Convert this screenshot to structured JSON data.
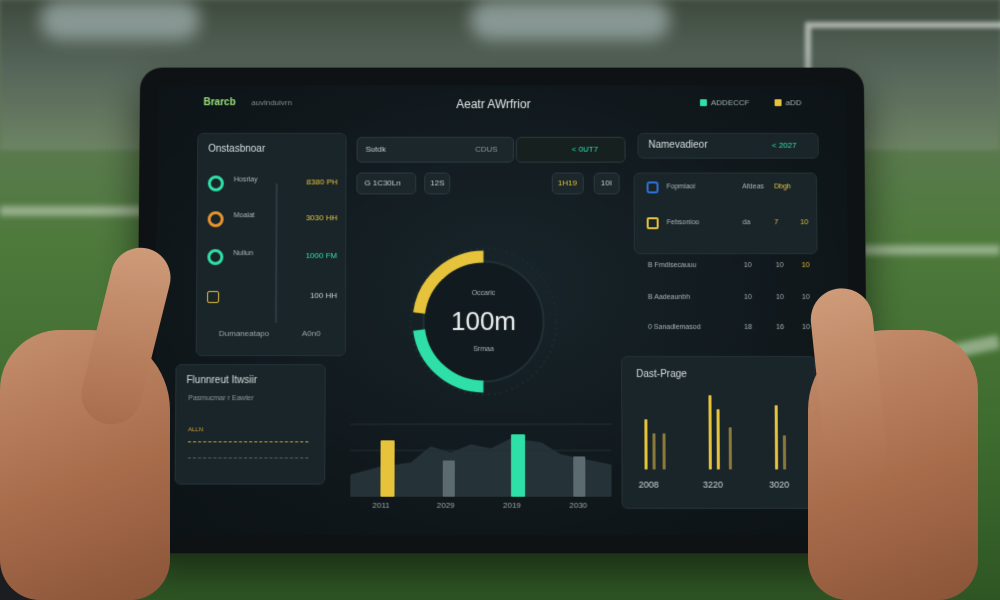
{
  "app": {
    "brand": "Brarcb",
    "brand_sub": "auvlnduivrn",
    "title": "Aeatr AWrfrior",
    "top_right_1": "ADDECCF",
    "top_right_2": "aDD"
  },
  "left_panel": {
    "title": "Onstasbnoar",
    "rows": [
      {
        "label": "Hosrlay",
        "value": "8380 PH"
      },
      {
        "label": "Moalat",
        "value": "3030 HH"
      },
      {
        "label": "Nuliun",
        "value": "1000 FM"
      },
      {
        "label": "",
        "value": "100 HH"
      }
    ],
    "footer_left": "Dumaneatapo",
    "footer_right": "A0n0"
  },
  "left_bottom": {
    "title": "Flunnreut Itwsiir",
    "sub": "Pasmucmar r Eawter",
    "legend": "ALLN"
  },
  "center": {
    "search_label": "Sutdk",
    "search_meta": "CDUS",
    "search_right": "< 0UT7",
    "filter": "G 1C30Ln",
    "chip_1": "12S",
    "chip_2": "1H19",
    "chip_3": "10I",
    "gauge": {
      "value_text": "100m",
      "top_label": "Occaric",
      "bottom_label": "Srmaa"
    },
    "x_labels": [
      "2011",
      "2029",
      "2019",
      "2030"
    ]
  },
  "right_panel": {
    "head_title": "Namevadieor",
    "head_right": "< 2027",
    "list": [
      {
        "label": "Fopmiaoi",
        "c2": "Afdeas",
        "c3": "Dbgh"
      },
      {
        "label": "Febsonioo",
        "c2": "da",
        "c3": "7",
        "c4": "10"
      }
    ],
    "table": [
      {
        "label": "B Fmdisecauuu",
        "c2": "10",
        "c3": "10",
        "c4": "10"
      },
      {
        "label": "B Aadeaunbh",
        "c2": "10",
        "c3": "10",
        "c4": "10"
      },
      {
        "label": "0 Sanadlemasod",
        "c2": "18",
        "c3": "16",
        "c4": "10"
      }
    ],
    "chart_title": "Dast-Prage",
    "x_labels": [
      "2008",
      "3220",
      "3020"
    ]
  },
  "colors": {
    "accent_yellow": "#e6c33b",
    "accent_teal": "#2ee0a7",
    "panel": "#1a2529",
    "screen_bg": "#10181c"
  },
  "icons": [
    "ring-green-icon",
    "ring-orange-icon",
    "ring-teal-icon",
    "grid-icon",
    "calendar-icon"
  ]
}
